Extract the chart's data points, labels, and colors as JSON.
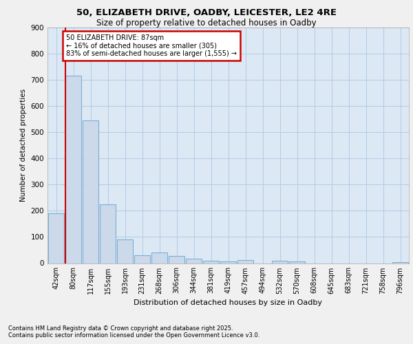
{
  "title1": "50, ELIZABETH DRIVE, OADBY, LEICESTER, LE2 4RE",
  "title2": "Size of property relative to detached houses in Oadby",
  "xlabel": "Distribution of detached houses by size in Oadby",
  "ylabel": "Number of detached properties",
  "bar_labels": [
    "42sqm",
    "80sqm",
    "117sqm",
    "155sqm",
    "193sqm",
    "231sqm",
    "268sqm",
    "306sqm",
    "344sqm",
    "381sqm",
    "419sqm",
    "457sqm",
    "494sqm",
    "532sqm",
    "570sqm",
    "608sqm",
    "645sqm",
    "683sqm",
    "721sqm",
    "758sqm",
    "796sqm"
  ],
  "bar_values": [
    190,
    715,
    545,
    225,
    90,
    30,
    40,
    27,
    16,
    10,
    6,
    11,
    0,
    8,
    7,
    0,
    0,
    0,
    0,
    0,
    3
  ],
  "bar_color": "#ccd9ea",
  "bar_edge_color": "#7bafd4",
  "vline_color": "#cc0000",
  "annotation_title": "50 ELIZABETH DRIVE: 87sqm",
  "annotation_line1": "← 16% of detached houses are smaller (305)",
  "annotation_line2": "83% of semi-detached houses are larger (1,555) →",
  "annotation_box_color": "#ffffff",
  "annotation_box_edge": "#cc0000",
  "ylim": [
    0,
    900
  ],
  "yticks": [
    0,
    100,
    200,
    300,
    400,
    500,
    600,
    700,
    800,
    900
  ],
  "grid_color": "#b8cce4",
  "bg_color": "#dce9f5",
  "fig_bg": "#f0f0f0",
  "footer1": "Contains HM Land Registry data © Crown copyright and database right 2025.",
  "footer2": "Contains public sector information licensed under the Open Government Licence v3.0."
}
